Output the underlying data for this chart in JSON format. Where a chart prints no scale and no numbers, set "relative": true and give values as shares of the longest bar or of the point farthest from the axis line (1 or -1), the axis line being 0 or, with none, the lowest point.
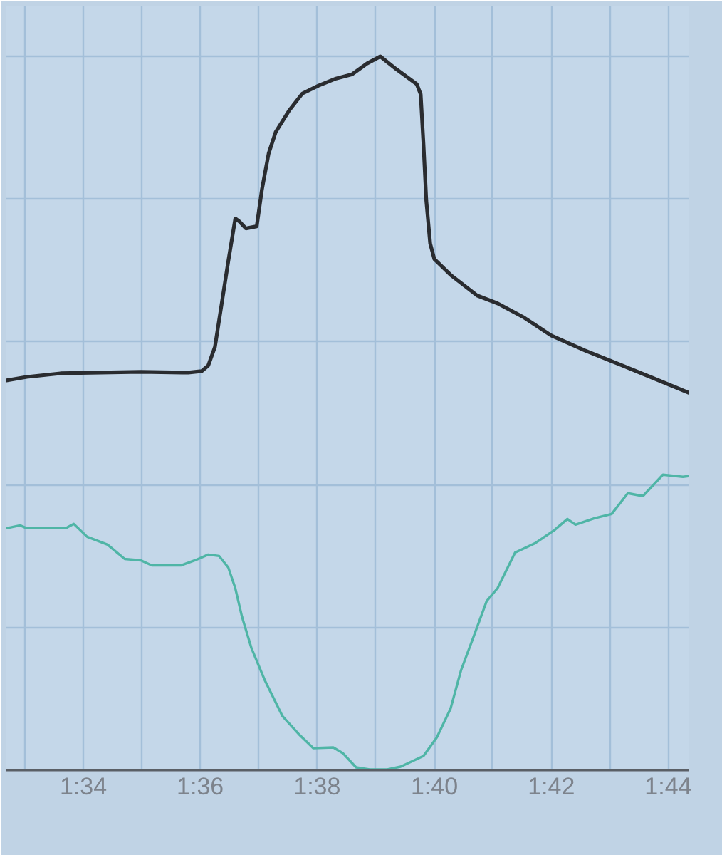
{
  "chart_data": {
    "type": "line",
    "relative": true,
    "tick_labels": "x",
    "grid": true,
    "xlim": [
      1.5448,
      1.7391
    ],
    "xticks": [
      {
        "value": 1.55,
        "label": null
      },
      {
        "value": 1.5667,
        "label": "1:34"
      },
      {
        "value": 1.5833,
        "label": null
      },
      {
        "value": 1.6,
        "label": "1:36"
      },
      {
        "value": 1.6167,
        "label": null
      },
      {
        "value": 1.6333,
        "label": "1:38"
      },
      {
        "value": 1.65,
        "label": null
      },
      {
        "value": 1.6667,
        "label": "1:40"
      },
      {
        "value": 1.6833,
        "label": null
      },
      {
        "value": 1.7,
        "label": "1:42"
      },
      {
        "value": 1.7167,
        "label": null
      },
      {
        "value": 1.7333,
        "label": "1:44"
      }
    ],
    "series": [
      {
        "color": "#2a2c30",
        "x": [
          1.5448,
          1.5506,
          1.5602,
          1.5831,
          1.5966,
          1.6004,
          1.6023,
          1.6042,
          1.6061,
          1.608,
          1.61,
          1.6111,
          1.613,
          1.6161,
          1.6176,
          1.6195,
          1.6215,
          1.6253,
          1.6291,
          1.6337,
          1.6387,
          1.6433,
          1.6475,
          1.6513,
          1.6559,
          1.6617,
          1.6628,
          1.6636,
          1.6644,
          1.6655,
          1.6667,
          1.6713,
          1.6789,
          1.6847,
          1.6923,
          1.7,
          1.7096,
          1.7192,
          1.7287,
          1.7391
        ],
        "values": [
          0.546,
          0.551,
          0.556,
          0.558,
          0.557,
          0.559,
          0.567,
          0.593,
          0.653,
          0.713,
          0.773,
          0.769,
          0.759,
          0.762,
          0.814,
          0.864,
          0.894,
          0.924,
          0.948,
          0.959,
          0.969,
          0.975,
          0.99,
          1.0,
          0.982,
          0.961,
          0.947,
          0.877,
          0.798,
          0.738,
          0.716,
          0.694,
          0.665,
          0.654,
          0.634,
          0.609,
          0.588,
          0.569,
          0.55,
          0.529
        ]
      },
      {
        "color": "#4fb5a6",
        "x": [
          1.5448,
          1.5487,
          1.5506,
          1.5621,
          1.564,
          1.5678,
          1.5736,
          1.5785,
          1.5831,
          1.5862,
          1.5946,
          1.5985,
          1.6023,
          1.6054,
          1.608,
          1.61,
          1.6119,
          1.6146,
          1.6184,
          1.6234,
          1.628,
          1.6322,
          1.6379,
          1.6406,
          1.6444,
          1.6483,
          1.6533,
          1.6571,
          1.6636,
          1.6674,
          1.6713,
          1.6743,
          1.6778,
          1.6816,
          1.6847,
          1.6897,
          1.6954,
          1.7008,
          1.7046,
          1.7069,
          1.7123,
          1.7172,
          1.7218,
          1.7261,
          1.7318,
          1.7375,
          1.7391
        ],
        "values": [
          0.339,
          0.343,
          0.339,
          0.34,
          0.345,
          0.327,
          0.316,
          0.296,
          0.294,
          0.287,
          0.287,
          0.294,
          0.302,
          0.3,
          0.284,
          0.255,
          0.215,
          0.171,
          0.126,
          0.076,
          0.051,
          0.031,
          0.032,
          0.024,
          0.004,
          0.001,
          0.001,
          0.005,
          0.02,
          0.046,
          0.086,
          0.14,
          0.186,
          0.237,
          0.255,
          0.305,
          0.318,
          0.336,
          0.352,
          0.344,
          0.353,
          0.359,
          0.388,
          0.384,
          0.414,
          0.411,
          0.412
        ]
      }
    ]
  }
}
